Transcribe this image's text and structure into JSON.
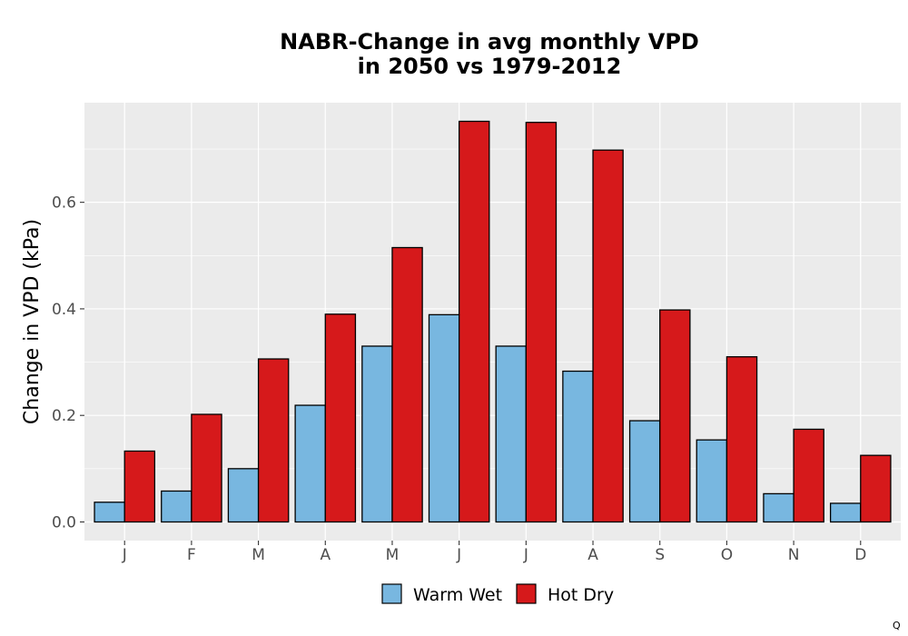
{
  "chart_data": {
    "type": "bar",
    "title": [
      "NABR-Change in avg monthly VPD",
      "in 2050 vs 1979-2012"
    ],
    "xlabel": "",
    "ylabel": "Change in VPD (kPa)",
    "categories": [
      "J",
      "F",
      "M",
      "A",
      "M",
      "J",
      "J",
      "A",
      "S",
      "O",
      "N",
      "D"
    ],
    "series": [
      {
        "name": "Warm Wet",
        "color": "#78b7e0",
        "values": [
          0.037,
          0.058,
          0.1,
          0.219,
          0.33,
          0.389,
          0.33,
          0.283,
          0.19,
          0.154,
          0.053,
          0.035
        ]
      },
      {
        "name": "Hot Dry",
        "color": "#d6191b",
        "values": [
          0.133,
          0.202,
          0.306,
          0.39,
          0.515,
          0.752,
          0.75,
          0.698,
          0.398,
          0.31,
          0.174,
          0.125
        ]
      }
    ],
    "ylim": [
      -0.035,
      0.787
    ],
    "yticks": [
      "0.0",
      "0.2",
      "0.4",
      "0.6"
    ],
    "grid": true,
    "panel_background": "#ebebeb",
    "legend_position": "bottom"
  },
  "corner_mark": "Q"
}
